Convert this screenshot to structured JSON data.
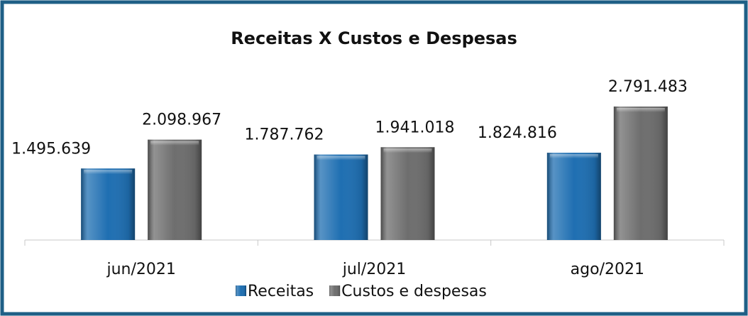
{
  "chart_data": {
    "type": "bar",
    "title": "Receitas X Custos e Despesas",
    "categories": [
      "jun/2021",
      "jul/2021",
      "ago/2021"
    ],
    "series": [
      {
        "name": "Receitas",
        "color": "#1f6fb2",
        "values": [
          1495639,
          1787762,
          1824816
        ],
        "value_labels": [
          "1.495.639",
          "1.787.762",
          "1.824.816"
        ]
      },
      {
        "name": "Custos e despesas",
        "color": "#6e6e6e",
        "values": [
          2098967,
          1941018,
          2791483
        ],
        "value_labels": [
          "2.098.967",
          "1.941.018",
          "2.791.483"
        ]
      }
    ],
    "legend": "bottom"
  }
}
